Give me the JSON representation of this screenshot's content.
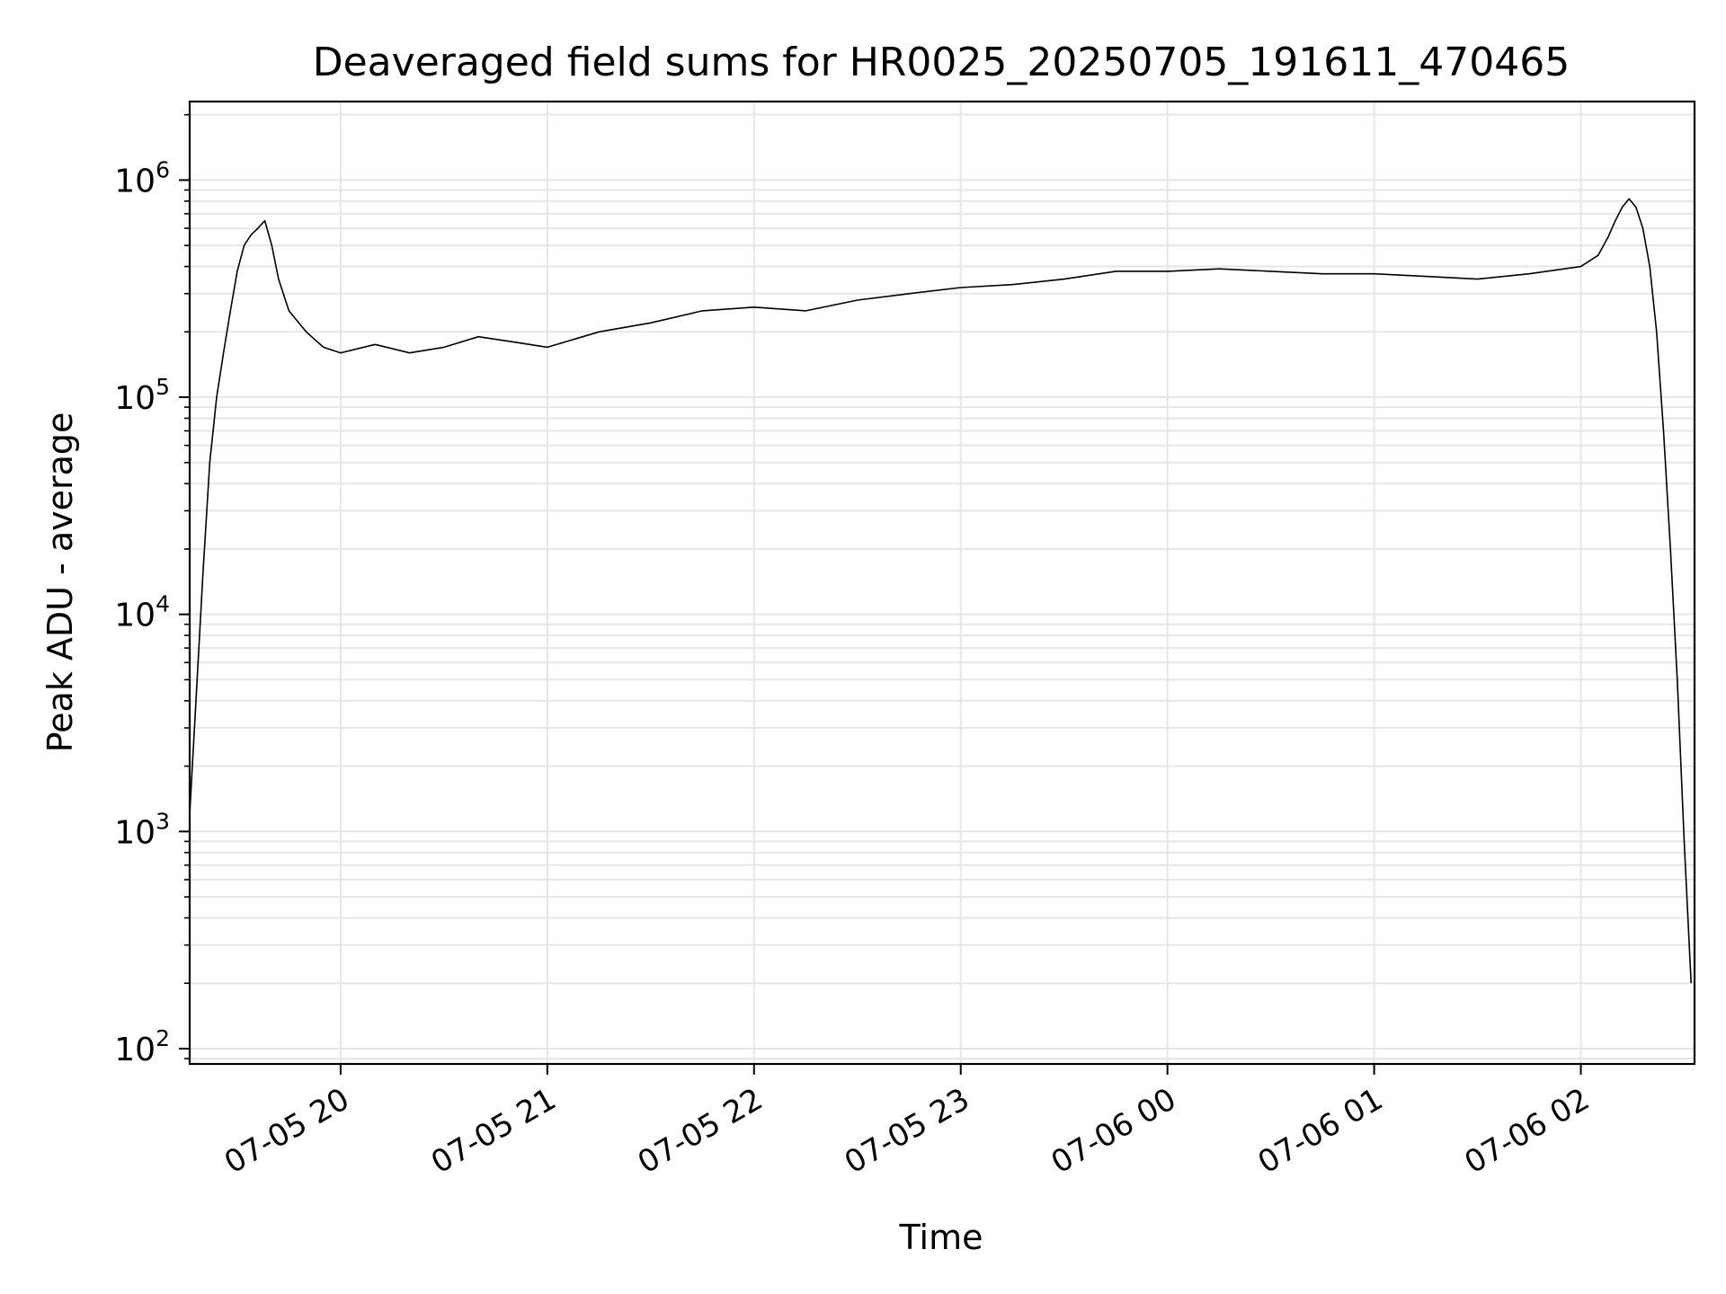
{
  "chart_data": {
    "type": "line",
    "title": "Deaveraged field sums for HR0025_20250705_191611_470465",
    "xlabel": "Time",
    "ylabel": "Peak ADU - average",
    "x_scale": "time",
    "y_scale": "log",
    "xlim": [
      "2025-07-05 19:16:11",
      "2025-07-06 02:33:00"
    ],
    "ylim": [
      85,
      2300000
    ],
    "x_ticks": [
      {
        "time": "2025-07-05 20:00",
        "label": "07-05 20"
      },
      {
        "time": "2025-07-05 21:00",
        "label": "07-05 21"
      },
      {
        "time": "2025-07-05 22:00",
        "label": "07-05 22"
      },
      {
        "time": "2025-07-05 23:00",
        "label": "07-05 23"
      },
      {
        "time": "2025-07-06 00:00",
        "label": "07-06 00"
      },
      {
        "time": "2025-07-06 01:00",
        "label": "07-06 01"
      },
      {
        "time": "2025-07-06 02:00",
        "label": "07-06 02"
      }
    ],
    "y_ticks": [
      {
        "value": 100,
        "base": "10",
        "exp": "2"
      },
      {
        "value": 1000,
        "base": "10",
        "exp": "3"
      },
      {
        "value": 10000,
        "base": "10",
        "exp": "4"
      },
      {
        "value": 100000,
        "base": "10",
        "exp": "5"
      },
      {
        "value": 1000000,
        "base": "10",
        "exp": "6"
      }
    ],
    "grid": true,
    "line_color": "#000000",
    "grid_color": "#e6e6e6",
    "series": [
      {
        "time": [
          "2025-07-05 19:16:11",
          "2025-07-05 19:18",
          "2025-07-05 19:20",
          "2025-07-05 19:22",
          "2025-07-05 19:24",
          "2025-07-05 19:26",
          "2025-07-05 19:28",
          "2025-07-05 19:30",
          "2025-07-05 19:32",
          "2025-07-05 19:34",
          "2025-07-05 19:36",
          "2025-07-05 19:38",
          "2025-07-05 19:40",
          "2025-07-05 19:42",
          "2025-07-05 19:45",
          "2025-07-05 19:50",
          "2025-07-05 19:55",
          "2025-07-05 20:00",
          "2025-07-05 20:10",
          "2025-07-05 20:20",
          "2025-07-05 20:30",
          "2025-07-05 20:40",
          "2025-07-05 20:50",
          "2025-07-05 21:00",
          "2025-07-05 21:15",
          "2025-07-05 21:30",
          "2025-07-05 21:45",
          "2025-07-05 22:00",
          "2025-07-05 22:15",
          "2025-07-05 22:30",
          "2025-07-05 22:45",
          "2025-07-05 23:00",
          "2025-07-05 23:15",
          "2025-07-05 23:30",
          "2025-07-05 23:45",
          "2025-07-06 00:00",
          "2025-07-06 00:15",
          "2025-07-06 00:30",
          "2025-07-06 00:45",
          "2025-07-06 01:00",
          "2025-07-06 01:15",
          "2025-07-06 01:30",
          "2025-07-06 01:45",
          "2025-07-06 02:00",
          "2025-07-06 02:05",
          "2025-07-06 02:08",
          "2025-07-06 02:10",
          "2025-07-06 02:12",
          "2025-07-06 02:14",
          "2025-07-06 02:16",
          "2025-07-06 02:18",
          "2025-07-06 02:20",
          "2025-07-06 02:22",
          "2025-07-06 02:24",
          "2025-07-06 02:26",
          "2025-07-06 02:28",
          "2025-07-06 02:30",
          "2025-07-06 02:32"
        ],
        "values": [
          1200,
          4000,
          15000,
          50000,
          100000,
          160000,
          250000,
          380000,
          500000,
          560000,
          600000,
          650000,
          500000,
          350000,
          250000,
          200000,
          170000,
          160000,
          175000,
          160000,
          170000,
          190000,
          180000,
          170000,
          200000,
          220000,
          250000,
          260000,
          250000,
          280000,
          300000,
          320000,
          330000,
          350000,
          380000,
          380000,
          390000,
          380000,
          370000,
          370000,
          360000,
          350000,
          370000,
          400000,
          450000,
          550000,
          650000,
          750000,
          820000,
          750000,
          600000,
          400000,
          200000,
          70000,
          20000,
          5000,
          900,
          200
        ]
      }
    ]
  }
}
